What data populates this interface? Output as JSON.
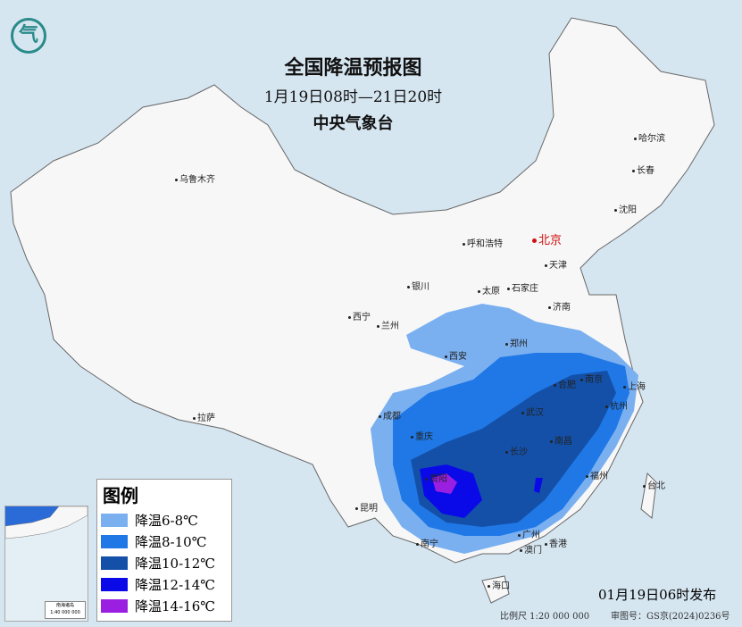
{
  "header": {
    "title": "全国降温预报图",
    "period": "1月19日08时—21日20时",
    "issuer": "中央气象台"
  },
  "logo": {
    "icon": "cma-logo-icon"
  },
  "cities": [
    {
      "name": "乌鲁木齐"
    },
    {
      "name": "哈尔滨"
    },
    {
      "name": "长春"
    },
    {
      "name": "沈阳"
    },
    {
      "name": "呼和浩特"
    },
    {
      "name": "北京",
      "capital": true
    },
    {
      "name": "天津"
    },
    {
      "name": "银川"
    },
    {
      "name": "太原"
    },
    {
      "name": "石家庄"
    },
    {
      "name": "济南"
    },
    {
      "name": "西宁"
    },
    {
      "name": "兰州"
    },
    {
      "name": "郑州"
    },
    {
      "name": "西安"
    },
    {
      "name": "合肥"
    },
    {
      "name": "南京"
    },
    {
      "name": "上海"
    },
    {
      "name": "杭州"
    },
    {
      "name": "武汉"
    },
    {
      "name": "成都"
    },
    {
      "name": "重庆"
    },
    {
      "name": "长沙"
    },
    {
      "name": "南昌"
    },
    {
      "name": "拉萨"
    },
    {
      "name": "福州"
    },
    {
      "name": "台北"
    },
    {
      "name": "贵阳"
    },
    {
      "name": "昆明"
    },
    {
      "name": "南宁"
    },
    {
      "name": "广州"
    },
    {
      "name": "澳门"
    },
    {
      "name": "香港"
    },
    {
      "name": "海口"
    }
  ],
  "legend": {
    "title": "图例",
    "items": [
      {
        "label": "降温6-8℃",
        "color": "#7ab0f0"
      },
      {
        "label": "降温8-10℃",
        "color": "#1f78e6"
      },
      {
        "label": "降温10-12℃",
        "color": "#1450a8"
      },
      {
        "label": "降温12-14℃",
        "color": "#0a0ae8"
      },
      {
        "label": "降温14-16℃",
        "color": "#9a1fe0"
      }
    ]
  },
  "inset": {
    "title": "南海诸岛",
    "scale": "1:40 000 000"
  },
  "footer": {
    "issued": "01月19日06时发布",
    "scale": "比例尺 1:20 000 000",
    "review_no": "审图号：GS京(2024)0236号"
  }
}
